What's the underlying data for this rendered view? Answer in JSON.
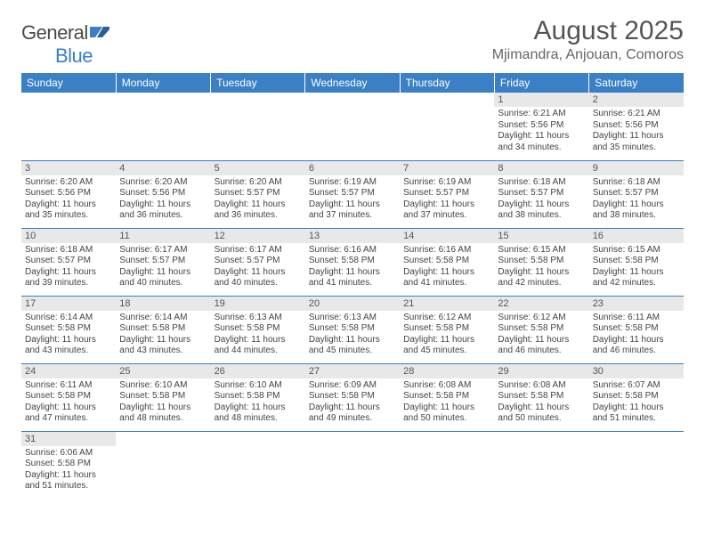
{
  "logo": {
    "text1": "General",
    "text2": "Blue"
  },
  "title": "August 2025",
  "location": "Mjimandra, Anjouan, Comoros",
  "colors": {
    "header_bg": "#3b7fc4",
    "daynum_bg": "#e8e8e8",
    "row_border": "#3b7fc4",
    "text": "#444444"
  },
  "weekdays": [
    "Sunday",
    "Monday",
    "Tuesday",
    "Wednesday",
    "Thursday",
    "Friday",
    "Saturday"
  ],
  "weeks": [
    [
      null,
      null,
      null,
      null,
      null,
      {
        "n": "1",
        "sr": "Sunrise: 6:21 AM",
        "ss": "Sunset: 5:56 PM",
        "dl": "Daylight: 11 hours and 34 minutes."
      },
      {
        "n": "2",
        "sr": "Sunrise: 6:21 AM",
        "ss": "Sunset: 5:56 PM",
        "dl": "Daylight: 11 hours and 35 minutes."
      }
    ],
    [
      {
        "n": "3",
        "sr": "Sunrise: 6:20 AM",
        "ss": "Sunset: 5:56 PM",
        "dl": "Daylight: 11 hours and 35 minutes."
      },
      {
        "n": "4",
        "sr": "Sunrise: 6:20 AM",
        "ss": "Sunset: 5:56 PM",
        "dl": "Daylight: 11 hours and 36 minutes."
      },
      {
        "n": "5",
        "sr": "Sunrise: 6:20 AM",
        "ss": "Sunset: 5:57 PM",
        "dl": "Daylight: 11 hours and 36 minutes."
      },
      {
        "n": "6",
        "sr": "Sunrise: 6:19 AM",
        "ss": "Sunset: 5:57 PM",
        "dl": "Daylight: 11 hours and 37 minutes."
      },
      {
        "n": "7",
        "sr": "Sunrise: 6:19 AM",
        "ss": "Sunset: 5:57 PM",
        "dl": "Daylight: 11 hours and 37 minutes."
      },
      {
        "n": "8",
        "sr": "Sunrise: 6:18 AM",
        "ss": "Sunset: 5:57 PM",
        "dl": "Daylight: 11 hours and 38 minutes."
      },
      {
        "n": "9",
        "sr": "Sunrise: 6:18 AM",
        "ss": "Sunset: 5:57 PM",
        "dl": "Daylight: 11 hours and 38 minutes."
      }
    ],
    [
      {
        "n": "10",
        "sr": "Sunrise: 6:18 AM",
        "ss": "Sunset: 5:57 PM",
        "dl": "Daylight: 11 hours and 39 minutes."
      },
      {
        "n": "11",
        "sr": "Sunrise: 6:17 AM",
        "ss": "Sunset: 5:57 PM",
        "dl": "Daylight: 11 hours and 40 minutes."
      },
      {
        "n": "12",
        "sr": "Sunrise: 6:17 AM",
        "ss": "Sunset: 5:57 PM",
        "dl": "Daylight: 11 hours and 40 minutes."
      },
      {
        "n": "13",
        "sr": "Sunrise: 6:16 AM",
        "ss": "Sunset: 5:58 PM",
        "dl": "Daylight: 11 hours and 41 minutes."
      },
      {
        "n": "14",
        "sr": "Sunrise: 6:16 AM",
        "ss": "Sunset: 5:58 PM",
        "dl": "Daylight: 11 hours and 41 minutes."
      },
      {
        "n": "15",
        "sr": "Sunrise: 6:15 AM",
        "ss": "Sunset: 5:58 PM",
        "dl": "Daylight: 11 hours and 42 minutes."
      },
      {
        "n": "16",
        "sr": "Sunrise: 6:15 AM",
        "ss": "Sunset: 5:58 PM",
        "dl": "Daylight: 11 hours and 42 minutes."
      }
    ],
    [
      {
        "n": "17",
        "sr": "Sunrise: 6:14 AM",
        "ss": "Sunset: 5:58 PM",
        "dl": "Daylight: 11 hours and 43 minutes."
      },
      {
        "n": "18",
        "sr": "Sunrise: 6:14 AM",
        "ss": "Sunset: 5:58 PM",
        "dl": "Daylight: 11 hours and 43 minutes."
      },
      {
        "n": "19",
        "sr": "Sunrise: 6:13 AM",
        "ss": "Sunset: 5:58 PM",
        "dl": "Daylight: 11 hours and 44 minutes."
      },
      {
        "n": "20",
        "sr": "Sunrise: 6:13 AM",
        "ss": "Sunset: 5:58 PM",
        "dl": "Daylight: 11 hours and 45 minutes."
      },
      {
        "n": "21",
        "sr": "Sunrise: 6:12 AM",
        "ss": "Sunset: 5:58 PM",
        "dl": "Daylight: 11 hours and 45 minutes."
      },
      {
        "n": "22",
        "sr": "Sunrise: 6:12 AM",
        "ss": "Sunset: 5:58 PM",
        "dl": "Daylight: 11 hours and 46 minutes."
      },
      {
        "n": "23",
        "sr": "Sunrise: 6:11 AM",
        "ss": "Sunset: 5:58 PM",
        "dl": "Daylight: 11 hours and 46 minutes."
      }
    ],
    [
      {
        "n": "24",
        "sr": "Sunrise: 6:11 AM",
        "ss": "Sunset: 5:58 PM",
        "dl": "Daylight: 11 hours and 47 minutes."
      },
      {
        "n": "25",
        "sr": "Sunrise: 6:10 AM",
        "ss": "Sunset: 5:58 PM",
        "dl": "Daylight: 11 hours and 48 minutes."
      },
      {
        "n": "26",
        "sr": "Sunrise: 6:10 AM",
        "ss": "Sunset: 5:58 PM",
        "dl": "Daylight: 11 hours and 48 minutes."
      },
      {
        "n": "27",
        "sr": "Sunrise: 6:09 AM",
        "ss": "Sunset: 5:58 PM",
        "dl": "Daylight: 11 hours and 49 minutes."
      },
      {
        "n": "28",
        "sr": "Sunrise: 6:08 AM",
        "ss": "Sunset: 5:58 PM",
        "dl": "Daylight: 11 hours and 50 minutes."
      },
      {
        "n": "29",
        "sr": "Sunrise: 6:08 AM",
        "ss": "Sunset: 5:58 PM",
        "dl": "Daylight: 11 hours and 50 minutes."
      },
      {
        "n": "30",
        "sr": "Sunrise: 6:07 AM",
        "ss": "Sunset: 5:58 PM",
        "dl": "Daylight: 11 hours and 51 minutes."
      }
    ],
    [
      {
        "n": "31",
        "sr": "Sunrise: 6:06 AM",
        "ss": "Sunset: 5:58 PM",
        "dl": "Daylight: 11 hours and 51 minutes."
      },
      null,
      null,
      null,
      null,
      null,
      null
    ]
  ]
}
